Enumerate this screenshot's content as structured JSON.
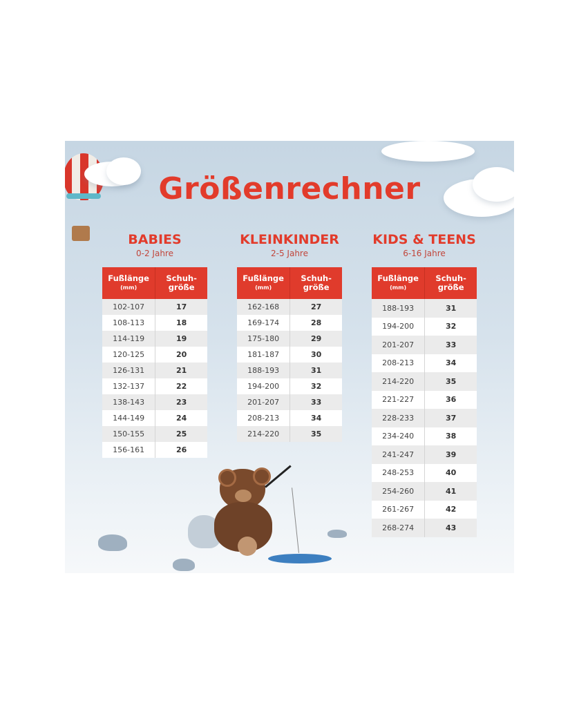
{
  "title": "Größenrechner",
  "header_labels": {
    "foot_length": "Fußlänge",
    "unit": "(mm)",
    "shoe_size_line1": "Schuh-",
    "shoe_size_line2": "größe"
  },
  "sections": [
    {
      "name": "BABIES",
      "age": "0-2 Jahre",
      "rows": [
        [
          "102-107",
          "17"
        ],
        [
          "108-113",
          "18"
        ],
        [
          "114-119",
          "19"
        ],
        [
          "120-125",
          "20"
        ],
        [
          "126-131",
          "21"
        ],
        [
          "132-137",
          "22"
        ],
        [
          "138-143",
          "23"
        ],
        [
          "144-149",
          "24"
        ],
        [
          "150-155",
          "25"
        ],
        [
          "156-161",
          "26"
        ]
      ]
    },
    {
      "name": "KLEINKINDER",
      "age": "2-5 Jahre",
      "rows": [
        [
          "162-168",
          "27"
        ],
        [
          "169-174",
          "28"
        ],
        [
          "175-180",
          "29"
        ],
        [
          "181-187",
          "30"
        ],
        [
          "188-193",
          "31"
        ],
        [
          "194-200",
          "32"
        ],
        [
          "201-207",
          "33"
        ],
        [
          "208-213",
          "34"
        ],
        [
          "214-220",
          "35"
        ]
      ]
    },
    {
      "name": "KIDS & TEENS",
      "age": "6-16 Jahre",
      "rows": [
        [
          "188-193",
          "31"
        ],
        [
          "194-200",
          "32"
        ],
        [
          "201-207",
          "33"
        ],
        [
          "208-213",
          "34"
        ],
        [
          "214-220",
          "35"
        ],
        [
          "221-227",
          "36"
        ],
        [
          "228-233",
          "37"
        ],
        [
          "234-240",
          "38"
        ],
        [
          "241-247",
          "39"
        ],
        [
          "248-253",
          "40"
        ],
        [
          "254-260",
          "41"
        ],
        [
          "261-267",
          "42"
        ],
        [
          "268-274",
          "43"
        ]
      ]
    }
  ],
  "colors": {
    "accent": "#e23b2b",
    "header_bg": "#e03b2c",
    "background": "#c6d6e3"
  }
}
